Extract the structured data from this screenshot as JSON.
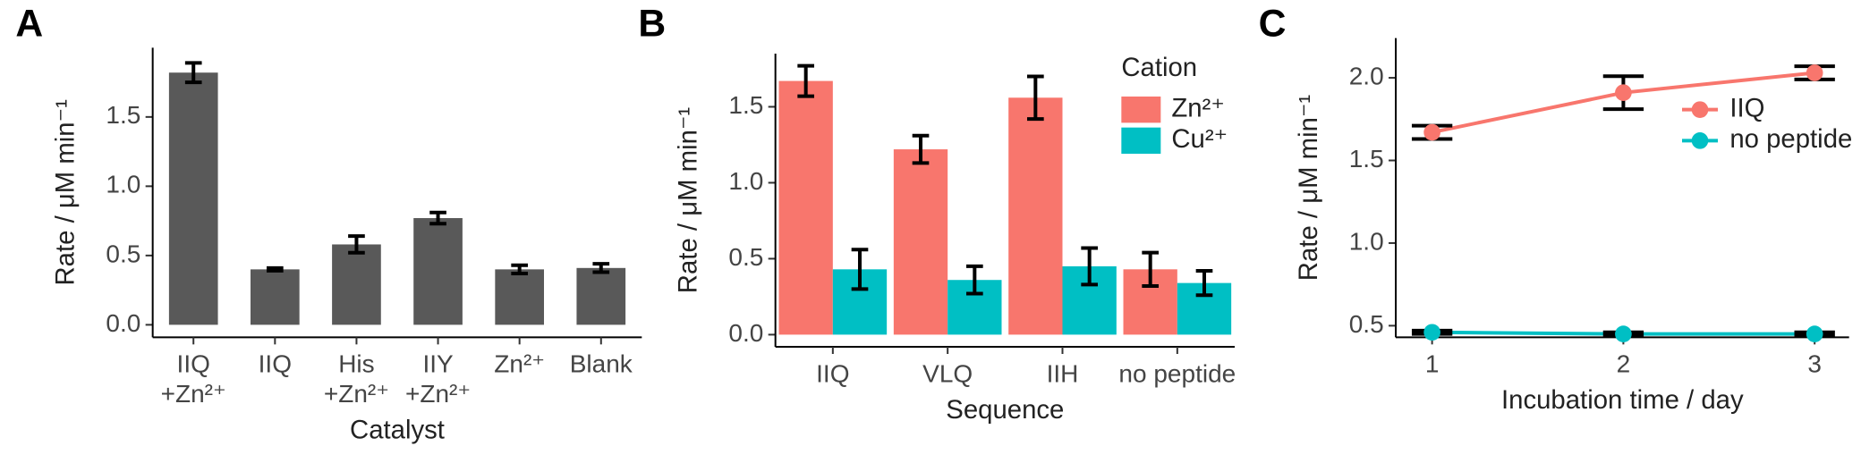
{
  "chart_data": [
    {
      "type": "bar",
      "panel_label": "A",
      "y_label": "Rate / μM min⁻¹",
      "x_label": "Catalyst",
      "color": "#595959",
      "categories": [
        [
          "IIQ",
          "+Zn²⁺"
        ],
        [
          "IIQ"
        ],
        [
          "His",
          "+Zn²⁺"
        ],
        [
          "IIY",
          "+Zn²⁺"
        ],
        [
          "Zn²⁺"
        ],
        [
          "Blank"
        ]
      ],
      "values": [
        1.82,
        0.4,
        0.58,
        0.77,
        0.4,
        0.41
      ],
      "errors": [
        0.07,
        0.01,
        0.06,
        0.04,
        0.03,
        0.03
      ],
      "ylim": [
        -0.09,
        2.0
      ],
      "yticks": [
        {
          "value": 0,
          "label": "0.0"
        },
        {
          "value": 0.5,
          "label": "0.5"
        },
        {
          "value": 1,
          "label": "1.0"
        },
        {
          "value": 1.5,
          "label": "1.5"
        }
      ]
    },
    {
      "type": "grouped_bar",
      "panel_label": "B",
      "y_label": "Rate / μM min⁻¹",
      "x_label": "Sequence",
      "legend_title": "Cation",
      "legend": "top-right",
      "categories": [
        "IIQ",
        "VLQ",
        "IIH",
        "no peptide"
      ],
      "series": [
        {
          "name": "Zn²⁺",
          "color": "#F8766D",
          "values": [
            1.67,
            1.22,
            1.56,
            0.43
          ],
          "errors": [
            0.1,
            0.09,
            0.14,
            0.11
          ]
        },
        {
          "name": "Cu²⁺",
          "color": "#00BFC4",
          "values": [
            0.43,
            0.36,
            0.45,
            0.34
          ],
          "errors": [
            0.13,
            0.09,
            0.12,
            0.08
          ]
        }
      ],
      "ylim": [
        -0.08,
        1.85
      ],
      "yticks": [
        {
          "value": 0,
          "label": "0.0"
        },
        {
          "value": 0.5,
          "label": "0.5"
        },
        {
          "value": 1,
          "label": "1.0"
        },
        {
          "value": 1.5,
          "label": "1.5"
        }
      ]
    },
    {
      "type": "line",
      "panel_label": "C",
      "y_label": "Rate / μM min⁻¹",
      "x_label": "Incubation time / day",
      "legend": "top-right",
      "x": [
        1,
        2,
        3
      ],
      "series": [
        {
          "name": "IIQ",
          "color": "#F8766D",
          "values": [
            1.67,
            1.91,
            2.03
          ],
          "errors": [
            0.04,
            0.1,
            0.04
          ]
        },
        {
          "name": "no peptide",
          "color": "#00BFC4",
          "values": [
            0.46,
            0.45,
            0.45
          ],
          "errors": [
            0.01,
            0.01,
            0.01
          ]
        }
      ],
      "xlim": [
        0.81,
        3.18
      ],
      "xticks": [
        1,
        2,
        3
      ],
      "ylim": [
        0.43,
        2.24
      ],
      "yticks": [
        {
          "value": 0.5,
          "label": "0.5"
        },
        {
          "value": 1,
          "label": "1.0"
        },
        {
          "value": 1.5,
          "label": "1.5"
        },
        {
          "value": 2,
          "label": "2.0"
        }
      ]
    }
  ]
}
